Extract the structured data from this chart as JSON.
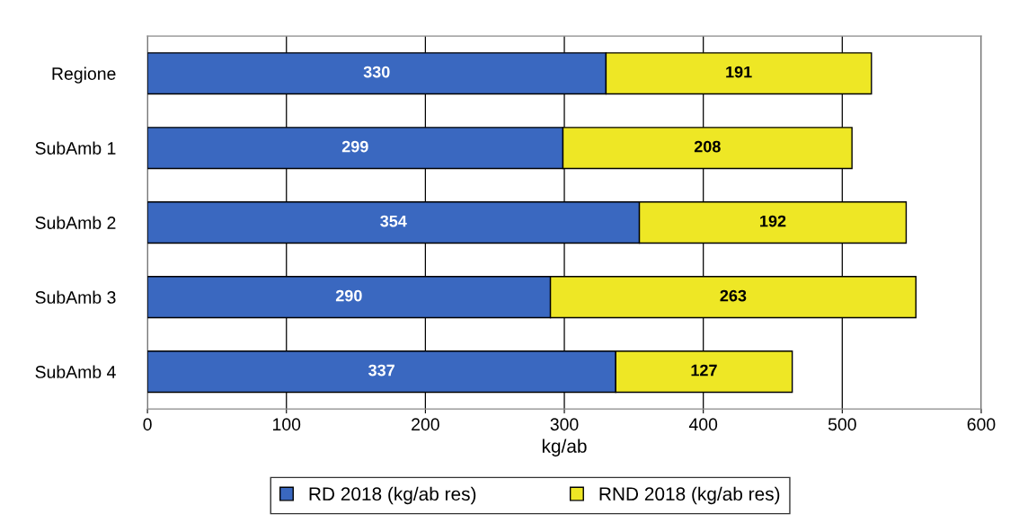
{
  "chart_data": {
    "type": "bar",
    "orientation": "horizontal",
    "stacked": true,
    "categories": [
      "Regione",
      "SubAmb 1",
      "SubAmb 2",
      "SubAmb 3",
      "SubAmb 4"
    ],
    "series": [
      {
        "name": "RD 2018 (kg/ab res)",
        "color": "#3a68c0",
        "values": [
          330,
          299,
          354,
          290,
          337
        ]
      },
      {
        "name": "RND 2018 (kg/ab res)",
        "color": "#eee725",
        "values": [
          191,
          208,
          192,
          263,
          127
        ]
      }
    ],
    "xlabel": "kg/ab",
    "xlim": [
      0,
      600
    ],
    "xticks": [
      0,
      100,
      200,
      300,
      400,
      500,
      600
    ],
    "grid": "x",
    "legend": "bottom",
    "data_labels": true
  }
}
